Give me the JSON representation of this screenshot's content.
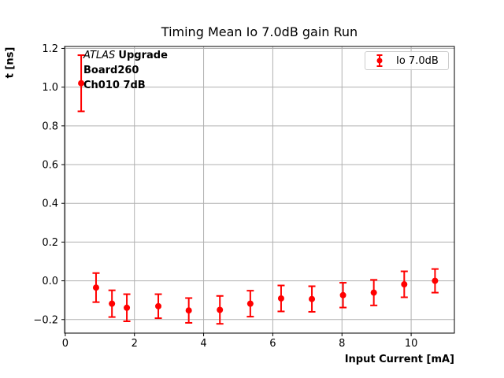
{
  "figure": {
    "background": "#ffffff",
    "annotation": {
      "experiment_italic": "ATLAS",
      "line1_bold": "Upgrade",
      "line2": "Board260",
      "line3": "Ch010 7dB"
    },
    "legend": {
      "position": "upper right",
      "entries": [
        {
          "label": "Io 7.0dB",
          "color": "#ff0000",
          "marker": "errorbar-point"
        }
      ]
    }
  },
  "chart_data": {
    "type": "scatter",
    "mode": "errorbar-points",
    "title": "Timing Mean Io 7.0dB gain Run",
    "xlabel": "Input Current [mA]",
    "ylabel": "t [ns]",
    "xlim": [
      -0.02,
      11.25
    ],
    "ylim": [
      -0.27,
      1.21
    ],
    "xticks": [
      0,
      2,
      4,
      6,
      8,
      10
    ],
    "yticks": [
      -0.2,
      0.0,
      0.2,
      0.4,
      0.6,
      0.8,
      1.0,
      1.2
    ],
    "grid": true,
    "legend_position": "upper right",
    "annotations": [
      "ATLAS Upgrade",
      "Board260",
      "Ch010 7dB"
    ],
    "series": [
      {
        "name": "Io 7.0dB",
        "color": "#ff0000",
        "x": [
          0.46,
          0.89,
          1.35,
          1.78,
          2.69,
          3.57,
          4.47,
          5.35,
          6.24,
          7.13,
          8.03,
          8.92,
          9.8,
          10.69
        ],
        "y": [
          1.02,
          -0.035,
          -0.118,
          -0.139,
          -0.131,
          -0.153,
          -0.15,
          -0.118,
          -0.091,
          -0.094,
          -0.074,
          -0.061,
          -0.018,
          0.0
        ],
        "yerr": [
          0.145,
          0.075,
          0.069,
          0.07,
          0.062,
          0.064,
          0.072,
          0.067,
          0.067,
          0.066,
          0.064,
          0.066,
          0.067,
          0.061
        ]
      }
    ]
  },
  "colors": {
    "accent": "#ff0000",
    "grid": "#b0b0b0",
    "frame": "#000000",
    "legend_border": "#cccccc",
    "background": "#ffffff"
  }
}
